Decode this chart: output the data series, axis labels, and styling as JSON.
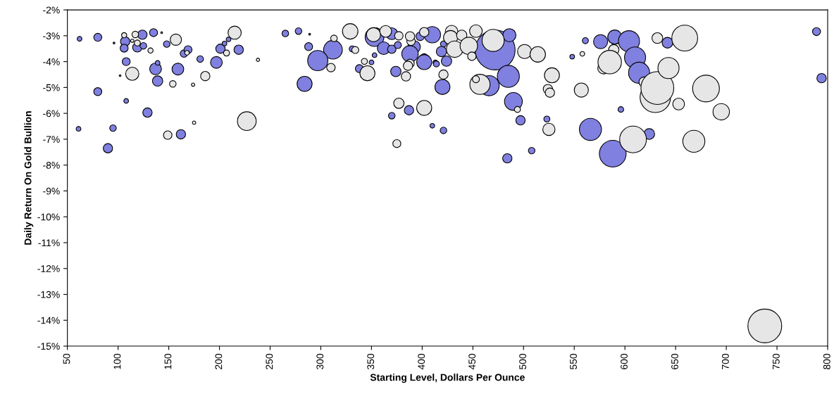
{
  "chart_data": {
    "type": "bubble",
    "xlabel": "Starting Level, Dollars Per Ounce",
    "ylabel": "Daily Return On Gold Bullion",
    "xlim": [
      50,
      800
    ],
    "xticks": [
      50,
      100,
      150,
      200,
      250,
      300,
      350,
      400,
      450,
      500,
      550,
      600,
      650,
      700,
      750,
      800
    ],
    "ylim": [
      -15,
      -2
    ],
    "yticks": [
      {
        "value": -2,
        "label": "-2%"
      },
      {
        "value": -3,
        "label": "-3%"
      },
      {
        "value": -4,
        "label": "-4%"
      },
      {
        "value": -5,
        "label": "-5%"
      },
      {
        "value": -6,
        "label": "-6%"
      },
      {
        "value": -7,
        "label": "-7%"
      },
      {
        "value": -8,
        "label": "-8%"
      },
      {
        "value": -9,
        "label": "-9%"
      },
      {
        "value": -10,
        "label": "-10%"
      },
      {
        "value": -11,
        "label": "-11%"
      },
      {
        "value": -12,
        "label": "-12%"
      },
      {
        "value": -13,
        "label": "-13%"
      },
      {
        "value": -14,
        "label": "-14%"
      },
      {
        "value": -15,
        "label": "-15%"
      }
    ],
    "grid": false,
    "legend": false,
    "series": [
      {
        "color": "#8080e0",
        "x": [
          62,
          80,
          96,
          107,
          106,
          124,
          119,
          125,
          135,
          143,
          148,
          165,
          169,
          181,
          197,
          201,
          205,
          209,
          219,
          108,
          102,
          137,
          139,
          159,
          139,
          80,
          108,
          129,
          61,
          95,
          162,
          90,
          265,
          278,
          289,
          288,
          312,
          297,
          331,
          284,
          353,
          350,
          338,
          353,
          370,
          362,
          370,
          376,
          374,
          370,
          398,
          410,
          392,
          388,
          402,
          402,
          413,
          414,
          421,
          419,
          424,
          472,
          486,
          420,
          485,
          466,
          490,
          497,
          387,
          410,
          421,
          484,
          508,
          523,
          548,
          561,
          566,
          576,
          590,
          604,
          610,
          614,
          642,
          596,
          624,
          588,
          789,
          794
        ],
        "values": [
          -3.12,
          -3.06,
          -3.28,
          -3.22,
          -3.48,
          -2.96,
          -3.45,
          -3.39,
          -2.88,
          -2.88,
          -3.32,
          -3.69,
          -3.54,
          -3.9,
          -4.03,
          -3.5,
          -3.3,
          -3.14,
          -3.54,
          -4.0,
          -4.54,
          -4.28,
          -4.05,
          -4.29,
          -4.75,
          -5.16,
          -5.52,
          -5.97,
          -6.6,
          -6.57,
          -6.81,
          -7.35,
          -2.91,
          -2.82,
          -2.94,
          -3.42,
          -3.54,
          -3.96,
          -3.51,
          -4.86,
          -3.75,
          -4.03,
          -4.27,
          -3.05,
          -2.92,
          -3.48,
          -3.52,
          -3.36,
          -4.38,
          -6.09,
          -3.02,
          -2.96,
          -3.43,
          -3.7,
          -3.85,
          -4.02,
          -4.03,
          -4.09,
          -3.32,
          -3.61,
          -3.98,
          -3.55,
          -2.98,
          -4.98,
          -4.57,
          -4.93,
          -5.54,
          -6.27,
          -5.88,
          -6.48,
          -6.66,
          -7.74,
          -7.44,
          -6.22,
          -3.81,
          -3.19,
          -6.62,
          -3.23,
          -3.05,
          -3.21,
          -3.84,
          -4.43,
          -3.27,
          -5.85,
          -6.8,
          -7.56,
          -2.84,
          -4.64
        ],
        "sizes": [
          0.014,
          0.04,
          0.002,
          0.055,
          0.04,
          0.055,
          0.055,
          0.027,
          0.04,
          0.002,
          0.027,
          0.035,
          0.04,
          0.027,
          0.087,
          0.055,
          0.014,
          0.014,
          0.055,
          0.04,
          0.002,
          0.087,
          0.014,
          0.087,
          0.067,
          0.04,
          0.014,
          0.055,
          0.014,
          0.027,
          0.055,
          0.055,
          0.027,
          0.027,
          0.002,
          0.04,
          0.221,
          0.256,
          0.023,
          0.142,
          0.014,
          0.014,
          0.04,
          0.221,
          0.087,
          0.1,
          0.045,
          0.031,
          0.067,
          0.027,
          0.045,
          0.17,
          0.1,
          0.17,
          0.04,
          0.142,
          0.014,
          0.023,
          0.023,
          0.067,
          0.067,
          1,
          0.109,
          0.142,
          0.306,
          0.256,
          0.2,
          0.055,
          0.055,
          0.014,
          0.027,
          0.055,
          0.027,
          0.023,
          0.014,
          0.023,
          0.306,
          0.125,
          0.125,
          0.28,
          0.28,
          0.28,
          0.073,
          0.02,
          0.073,
          0.45,
          0.04,
          0.055
        ]
      },
      {
        "color": "#e6e6e6",
        "x": [
          106,
          114,
          117,
          119,
          132,
          157,
          168,
          207,
          215,
          238,
          114,
          154,
          174,
          186,
          227,
          175,
          149,
          313,
          310,
          329,
          334,
          343,
          346,
          352,
          364,
          377,
          377,
          375,
          389,
          388,
          402,
          388,
          386,
          384,
          429,
          428,
          439,
          432,
          446,
          449,
          453,
          470,
          501,
          514,
          421,
          457,
          453,
          494,
          402,
          528,
          524,
          526,
          525,
          558,
          557,
          589,
          579,
          585,
          619,
          630,
          632,
          632,
          659,
          643,
          680,
          653,
          695,
          608,
          668,
          738
        ],
        "values": [
          -2.98,
          -3.19,
          -2.95,
          -3.28,
          -3.57,
          -3.15,
          -3.66,
          -3.67,
          -2.88,
          -3.93,
          -4.47,
          -4.86,
          -4.89,
          -4.56,
          -6.3,
          -6.36,
          -6.84,
          -3.1,
          -4.23,
          -2.83,
          -3.55,
          -3.99,
          -4.45,
          -2.96,
          -2.83,
          -3.0,
          -5.61,
          -7.17,
          -3.21,
          -3.02,
          -2.86,
          -4.07,
          -4.16,
          -4.57,
          -2.84,
          -3.07,
          -2.98,
          -3.52,
          -3.39,
          -3.79,
          -2.82,
          -3.18,
          -3.61,
          -3.72,
          -4.5,
          -4.88,
          -4.68,
          -5.85,
          -5.79,
          -4.53,
          -5.06,
          -5.2,
          -6.62,
          -3.7,
          -5.1,
          -3.54,
          -4.25,
          -4.02,
          -4.79,
          -5.38,
          -5.02,
          -3.09,
          -3.09,
          -4.25,
          -5.04,
          -5.64,
          -5.94,
          -7.01,
          -7.08,
          -14.22
        ],
        "sizes": [
          0.017,
          0.007,
          0.027,
          0.023,
          0.017,
          0.08,
          0.014,
          0.023,
          0.109,
          0.007,
          0.109,
          0.027,
          0.007,
          0.055,
          0.221,
          0.007,
          0.045,
          0.027,
          0.045,
          0.151,
          0.031,
          0.023,
          0.142,
          0.125,
          0.087,
          0.045,
          0.067,
          0.04,
          0.045,
          0.055,
          0.055,
          0.045,
          0.055,
          0.055,
          0.1,
          0.125,
          0.067,
          0.17,
          0.19,
          0.045,
          0.1,
          0.306,
          0.125,
          0.151,
          0.055,
          0.256,
          0.031,
          0.023,
          0.142,
          0.142,
          0.055,
          0.055,
          0.094,
          0.014,
          0.125,
          0.067,
          0.087,
          0.346,
          0.067,
          0.585,
          0.678,
          0.073,
          0.419,
          0.28,
          0.45,
          0.087,
          0.17,
          0.45,
          0.306,
          0.717
        ]
      }
    ]
  }
}
